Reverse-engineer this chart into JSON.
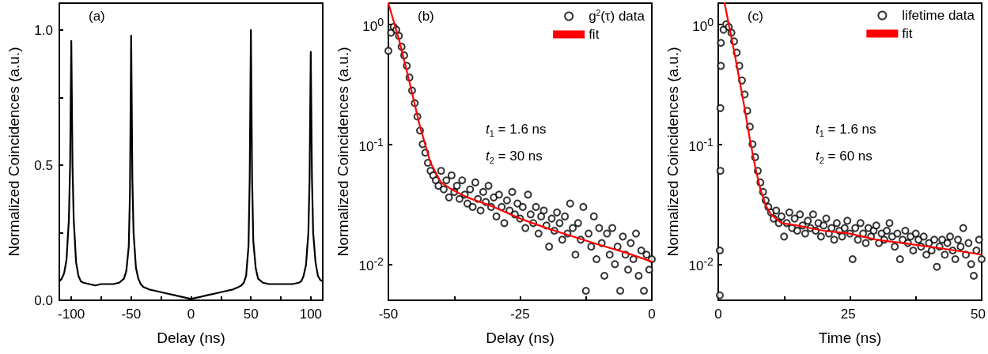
{
  "chart_data": [
    {
      "type": "line",
      "title": "(a)",
      "xlabel": "Delay (ns)",
      "ylabel": "Normalized Coincidences (a.u.)",
      "xlim": [
        -110,
        110
      ],
      "ylim": [
        0,
        1.1
      ],
      "xticks": [
        -100,
        {
          "value": -75,
          "label": null
        },
        -50,
        {
          "value": -25,
          "label": null
        },
        0,
        {
          "value": 25,
          "label": null
        },
        50,
        {
          "value": 75,
          "label": null
        },
        100
      ],
      "yticks": [
        {
          "value": 0,
          "label": "0.0"
        },
        {
          "value": 0.25,
          "label": null
        },
        0.5,
        {
          "value": 0.75,
          "label": null
        },
        {
          "value": 1,
          "label": "1.0"
        }
      ],
      "grid": false,
      "legend": false,
      "marker": "none",
      "line_style": "solid",
      "x": [
        -110,
        -108,
        -106,
        -104,
        -102,
        -101,
        -100,
        -99,
        -98,
        -96,
        -94,
        -92,
        -90,
        -85,
        -80,
        -75,
        -70,
        -65,
        -60,
        -56,
        -54,
        -52,
        -51,
        -50,
        -49,
        -48,
        -46,
        -44,
        -42,
        -40,
        -35,
        -30,
        -25,
        -20,
        -15,
        -10,
        -5,
        0,
        5,
        10,
        15,
        20,
        25,
        30,
        35,
        40,
        42,
        44,
        46,
        48,
        49,
        50,
        51,
        52,
        54,
        56,
        60,
        65,
        70,
        75,
        80,
        85,
        90,
        92,
        94,
        96,
        98,
        99,
        100,
        101,
        102,
        104,
        106,
        108,
        110
      ],
      "series": [
        {
          "color": "#000000",
          "values": [
            0.07,
            0.08,
            0.1,
            0.15,
            0.3,
            0.5,
            0.96,
            0.5,
            0.3,
            0.14,
            0.09,
            0.07,
            0.065,
            0.06,
            0.055,
            0.06,
            0.06,
            0.06,
            0.065,
            0.08,
            0.11,
            0.2,
            0.4,
            0.98,
            0.45,
            0.25,
            0.12,
            0.08,
            0.06,
            0.05,
            0.04,
            0.035,
            0.03,
            0.025,
            0.02,
            0.015,
            0.01,
            0.005,
            0.01,
            0.015,
            0.02,
            0.025,
            0.03,
            0.035,
            0.04,
            0.05,
            0.055,
            0.065,
            0.09,
            0.2,
            0.45,
            1.0,
            0.45,
            0.22,
            0.12,
            0.08,
            0.065,
            0.06,
            0.06,
            0.06,
            0.06,
            0.06,
            0.065,
            0.07,
            0.09,
            0.13,
            0.25,
            0.45,
            0.92,
            0.45,
            0.25,
            0.14,
            0.09,
            0.075,
            0.07
          ]
        }
      ]
    },
    {
      "type": "scatter",
      "title": "(b)",
      "xlabel": "Delay (ns)",
      "ylabel": "Normalized Coincidences (a.u.)",
      "xlim": [
        -50,
        0
      ],
      "ylim": [
        0.005,
        1.5
      ],
      "log": "y",
      "xticks": [
        -50,
        {
          "value": -37.5,
          "label": null
        },
        -25,
        {
          "value": -12.5,
          "label": null
        },
        0
      ],
      "yticks": [
        {
          "value": 0.01,
          "label": "10$^{-2}$"
        },
        {
          "value": 0.1,
          "label": "10$^{-1}$"
        },
        {
          "value": 1,
          "label": "10$^{0}$"
        }
      ],
      "grid": false,
      "legend": "top right",
      "annotations": [
        "t$_{1}$ = 1.6 ns",
        "t$_{2}$ = 30 ns"
      ],
      "series": [
        {
          "name": "g$^{2}$(τ) data",
          "type": "scatter",
          "marker": "circle",
          "color": "#000000",
          "x": [
            -50,
            -49.5,
            -49,
            -48.5,
            -48,
            -47.5,
            -47,
            -46.5,
            -46,
            -45.5,
            -45,
            -44.5,
            -44,
            -43.5,
            -43,
            -42.5,
            -42,
            -41.5,
            -41,
            -40.5,
            -40,
            -39.5,
            -39,
            -38.5,
            -38,
            -37.5,
            -37,
            -36.5,
            -36,
            -35.5,
            -35,
            -34.5,
            -34,
            -33.5,
            -33,
            -32.5,
            -32,
            -31.5,
            -31,
            -30.5,
            -30,
            -29.5,
            -29,
            -28.5,
            -28,
            -27.5,
            -27,
            -26.5,
            -26,
            -25.5,
            -25,
            -24.5,
            -24,
            -23.5,
            -23,
            -22.5,
            -22,
            -21.5,
            -21,
            -20.5,
            -20,
            -19.5,
            -19,
            -18.5,
            -18,
            -17.5,
            -17,
            -16.5,
            -16,
            -15.5,
            -15,
            -14.5,
            -14,
            -13.5,
            -13,
            -12.5,
            -12,
            -11.5,
            -11,
            -10.5,
            -10,
            -9.5,
            -9,
            -8.5,
            -8,
            -7.5,
            -7,
            -6.5,
            -6,
            -5.5,
            -5,
            -4.5,
            -4,
            -3.5,
            -3,
            -2.5,
            -2,
            -1.5,
            -1,
            -0.5,
            0
          ],
          "values": [
            0.6,
            0.85,
            0.95,
            0.9,
            0.8,
            0.65,
            0.55,
            0.45,
            0.36,
            0.28,
            0.22,
            0.17,
            0.13,
            0.1,
            0.085,
            0.07,
            0.06,
            0.055,
            0.05,
            0.045,
            0.06,
            0.042,
            0.05,
            0.036,
            0.055,
            0.04,
            0.045,
            0.035,
            0.05,
            0.038,
            0.032,
            0.042,
            0.03,
            0.048,
            0.035,
            0.028,
            0.04,
            0.033,
            0.045,
            0.03,
            0.036,
            0.025,
            0.038,
            0.03,
            0.022,
            0.034,
            0.028,
            0.04,
            0.026,
            0.032,
            0.024,
            0.03,
            0.02,
            0.038,
            0.026,
            0.022,
            0.03,
            0.018,
            0.025,
            0.028,
            0.021,
            0.014,
            0.024,
            0.019,
            0.027,
            0.022,
            0.016,
            0.025,
            0.018,
            0.032,
            0.02,
            0.012,
            0.022,
            0.016,
            0.03,
            0.006,
            0.018,
            0.014,
            0.025,
            0.011,
            0.02,
            0.015,
            0.008,
            0.018,
            0.012,
            0.02,
            0.01,
            0.014,
            0.006,
            0.017,
            0.012,
            0.009,
            0.015,
            0.011,
            0.018,
            0.008,
            0.013,
            0.006,
            0.012,
            0.009,
            0.011
          ]
        },
        {
          "name": "fit",
          "type": "line",
          "marker": "none",
          "line_style": "solid",
          "color": "#ff0000",
          "x": [
            -50,
            -48,
            -46,
            -44,
            -42,
            -40,
            -38,
            -35,
            -30,
            -25,
            -20,
            -15,
            -10,
            -5,
            0
          ],
          "values": [
            1.5,
            0.75,
            0.33,
            0.14,
            0.07,
            0.048,
            0.042,
            0.036,
            0.03,
            0.024,
            0.02,
            0.017,
            0.0145,
            0.0125,
            0.0105
          ]
        }
      ]
    },
    {
      "type": "scatter",
      "title": "(c)",
      "xlabel": "Time (ns)",
      "ylabel": "Normalized Coincidences (a.u.)",
      "xlim": [
        0,
        50
      ],
      "ylim": [
        0.005,
        1.5
      ],
      "log": "y",
      "xticks": [
        0,
        {
          "value": 12.5,
          "label": null
        },
        25,
        {
          "value": 37.5,
          "label": null
        },
        50
      ],
      "yticks": [
        {
          "value": 0.01,
          "label": "10$^{-2}$"
        },
        {
          "value": 0.1,
          "label": "10$^{-1}$"
        },
        {
          "value": 1,
          "label": "10$^{0}$"
        }
      ],
      "grid": false,
      "legend": "top right",
      "annotations": [
        "t$_{1}$ = 1.6 ns",
        "t$_{2}$ = 60 ns"
      ],
      "series": [
        {
          "name": "lifetime data",
          "type": "scatter",
          "marker": "circle",
          "color": "#000000",
          "x": [
            0.3,
            0.3,
            0.4,
            0.4,
            0.5,
            0.5,
            1,
            1.5,
            2,
            2.5,
            3,
            3.5,
            4,
            4.5,
            5,
            5.5,
            6,
            6.5,
            7,
            7.5,
            8,
            8.5,
            9,
            9.5,
            10,
            10.5,
            11,
            11.5,
            12,
            12.5,
            13,
            13.5,
            14,
            14.5,
            15,
            15.5,
            16,
            16.5,
            17,
            17.5,
            18,
            18.5,
            19,
            19.5,
            20,
            20.5,
            21,
            21.5,
            22,
            22.5,
            23,
            23.5,
            24,
            24.5,
            25,
            25.5,
            26,
            26.5,
            27,
            27.5,
            28,
            28.5,
            29,
            29.5,
            30,
            30.5,
            31,
            31.5,
            32,
            32.5,
            33,
            33.5,
            34,
            34.5,
            35,
            35.5,
            36,
            36.5,
            37,
            37.5,
            38,
            38.5,
            39,
            39.5,
            40,
            40.5,
            41,
            41.5,
            42,
            42.5,
            43,
            43.5,
            44,
            44.5,
            45,
            45.5,
            46,
            46.5,
            47,
            47.5,
            48,
            48.5,
            49,
            49.5,
            50
          ],
          "values": [
            0.0055,
            0.013,
            0.06,
            0.2,
            0.45,
            0.7,
            0.9,
            1.0,
            0.95,
            0.85,
            0.72,
            0.58,
            0.45,
            0.34,
            0.26,
            0.19,
            0.14,
            0.1,
            0.078,
            0.06,
            0.048,
            0.04,
            0.034,
            0.03,
            0.027,
            0.024,
            0.028,
            0.022,
            0.025,
            0.017,
            0.022,
            0.027,
            0.02,
            0.024,
            0.019,
            0.026,
            0.021,
            0.018,
            0.023,
            0.02,
            0.026,
            0.019,
            0.022,
            0.017,
            0.021,
            0.024,
            0.018,
            0.02,
            0.016,
            0.022,
            0.019,
            0.017,
            0.02,
            0.023,
            0.018,
            0.011,
            0.02,
            0.016,
            0.022,
            0.018,
            0.015,
            0.02,
            0.017,
            0.019,
            0.021,
            0.015,
            0.018,
            0.016,
            0.019,
            0.022,
            0.017,
            0.014,
            0.018,
            0.011,
            0.016,
            0.019,
            0.015,
            0.017,
            0.013,
            0.018,
            0.016,
            0.014,
            0.017,
            0.012,
            0.015,
            0.013,
            0.016,
            0.0095,
            0.014,
            0.016,
            0.012,
            0.015,
            0.017,
            0.013,
            0.011,
            0.016,
            0.014,
            0.02,
            0.012,
            0.015,
            0.01,
            0.008,
            0.013,
            0.016,
            0.011
          ]
        },
        {
          "name": "fit",
          "type": "line",
          "marker": "none",
          "line_style": "solid",
          "color": "#ff0000",
          "x": [
            1.2,
            2,
            3,
            4,
            5,
            6,
            7,
            8,
            9,
            10,
            12,
            15,
            20,
            25,
            30,
            35,
            40,
            45,
            50
          ],
          "values": [
            1.5,
            1.0,
            0.6,
            0.35,
            0.2,
            0.11,
            0.065,
            0.042,
            0.031,
            0.026,
            0.022,
            0.021,
            0.019,
            0.018,
            0.016,
            0.015,
            0.014,
            0.013,
            0.012
          ]
        }
      ]
    }
  ]
}
